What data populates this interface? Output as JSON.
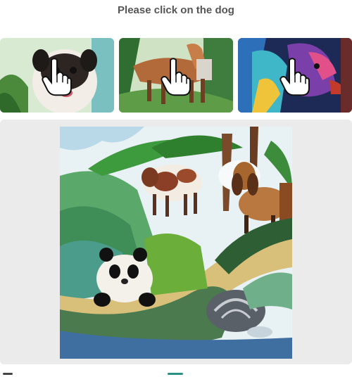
{
  "prompt": {
    "text": "Please click on the dog"
  },
  "choices": [
    {
      "name": "choice-pug",
      "subject": "pug",
      "icon": "pointing-hand-icon"
    },
    {
      "name": "choice-horse-dog",
      "subject": "horse-like dog",
      "icon": "pointing-hand-icon"
    },
    {
      "name": "choice-colorful-dog",
      "subject": "colorful dog",
      "icon": "pointing-hand-icon"
    }
  ],
  "scene": {
    "subjects": [
      "cow",
      "basset-hound",
      "panda",
      "turtle"
    ]
  },
  "colors": {
    "stage_background": "#ebebeb",
    "prompt_text": "#555555"
  }
}
